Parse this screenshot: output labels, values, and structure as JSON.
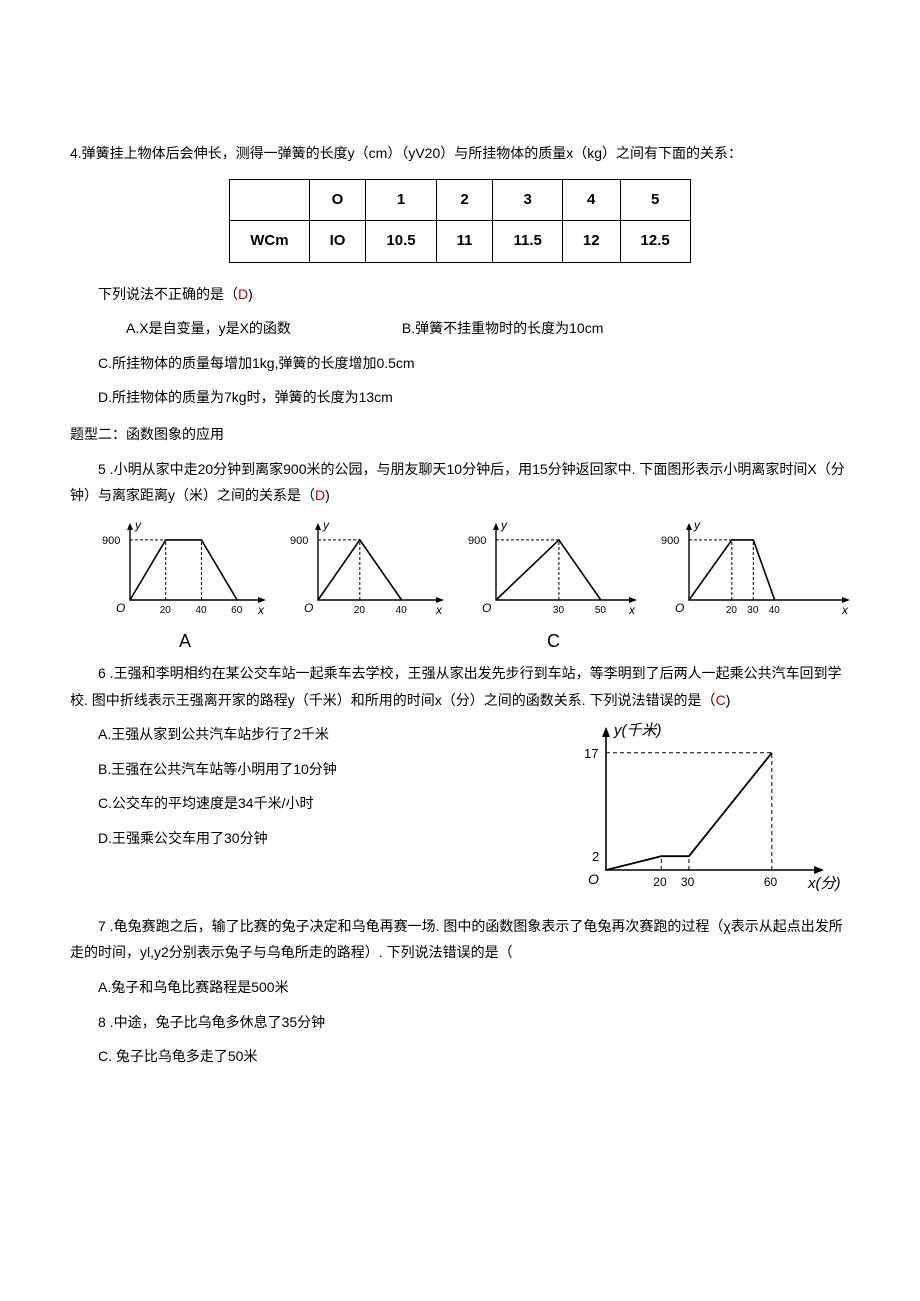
{
  "q4": {
    "prompt": "4.弹簧挂上物体后会伸长，测得一弹簧的长度y（cm）（yV20）与所挂物体的质量x（kg）之间有下面的关系：",
    "table": {
      "header": [
        "",
        "O",
        "1",
        "2",
        "3",
        "4",
        "5"
      ],
      "row": [
        "WCm",
        "IO",
        "10.5",
        "11",
        "11.5",
        "12",
        "12.5"
      ]
    },
    "stem": "下列说法不正确的是（",
    "ans": "D",
    "stem_close": ")",
    "optA": "A.X是自变量，y是X的函数",
    "optB": "B.弹簧不挂重物时的长度为10cm",
    "optC": "C.所挂物体的质量每增加1kg,弹簧的长度增加0.5cm",
    "optD": "D.所挂物体的质量为7kg时，弹簧的长度为13cm"
  },
  "section2": "题型二：函数图象的应用",
  "q5": {
    "prompt": "5 .小明从家中走20分钟到离家900米的公园，与朋友聊天10分钟后，用15分钟返回家中. 下面图形表示小明离家时间X（分钟）与离家距离y（米）之间的关系是（",
    "ans": "D",
    "close": ")",
    "labelA": "A",
    "labelC": "C",
    "charts": {
      "A": {
        "y_label": "y",
        "x_label": "x",
        "y_peak": "900",
        "x_ticks": [
          "20",
          "40",
          "60"
        ],
        "origin": "O",
        "points": [
          [
            0,
            0
          ],
          [
            20,
            55
          ],
          [
            40,
            55
          ],
          [
            60,
            0
          ]
        ],
        "dashx": [
          20,
          40
        ],
        "xmax": 70,
        "ymax": 65,
        "color": "#000"
      },
      "B": {
        "y_label": "y",
        "x_label": "x",
        "y_peak": "900",
        "x_ticks": [
          "20",
          "40"
        ],
        "origin": "O",
        "points": [
          [
            0,
            0
          ],
          [
            20,
            55
          ],
          [
            40,
            0
          ]
        ],
        "dashx": [
          20
        ],
        "xmax": 55,
        "ymax": 65,
        "color": "#000"
      },
      "C": {
        "y_label": "y",
        "x_label": "x",
        "y_peak": "900",
        "x_ticks": [
          "30",
          "50"
        ],
        "origin": "O",
        "points": [
          [
            0,
            0
          ],
          [
            30,
            55
          ],
          [
            50,
            0
          ]
        ],
        "dashx": [
          30
        ],
        "xmax": 62,
        "ymax": 65,
        "color": "#000"
      },
      "D": {
        "y_label": "y",
        "x_label": "x",
        "y_peak": "900",
        "x_ticks": [
          "20",
          "30",
          "40"
        ],
        "origin": "O",
        "points": [
          [
            0,
            0
          ],
          [
            20,
            55
          ],
          [
            30,
            55
          ],
          [
            40,
            0
          ]
        ],
        "dashx": [
          20,
          30
        ],
        "xmax": 70,
        "ymax": 65,
        "color": "#000"
      }
    }
  },
  "q6": {
    "prompt": "6 .王强和李明相约在某公交车站一起乘车去学校，王强从家出发先步行到车站，等李明到了后两人一起乘公共汽车回到学校. 图中折线表示王强离开家的路程y（千米）和所用的时间x（分）之间的函数关系. 下列说法错误的是（",
    "ans": "C",
    "close": ")",
    "optA": "A.王强从家到公共汽车站步行了2千米",
    "optB": "B.王强在公共汽车站等小明用了10分钟",
    "optC": "C.公交车的平均速度是34千米/小时",
    "optD": "D.王强乘公交车用了30分钟",
    "chart": {
      "y_label": "y(千米)",
      "x_label": "x(分)",
      "origin": "O",
      "y_ticks": [
        "2",
        "17"
      ],
      "x_ticks": [
        "20",
        "30",
        "60"
      ],
      "points": [
        [
          0,
          0
        ],
        [
          20,
          10
        ],
        [
          30,
          10
        ],
        [
          60,
          85
        ]
      ],
      "dash_to_y": [
        [
          60,
          85
        ]
      ],
      "dash_x": [
        20,
        30,
        60
      ],
      "xmax": 72,
      "ymax": 95,
      "italic": true,
      "color": "#000"
    }
  },
  "q7": {
    "prompt": "7 .龟兔赛跑之后，输了比赛的兔子决定和乌龟再赛一场. 图中的函数图象表示了龟兔再次赛跑的过程（χ表示从起点出发所走的时间，yl,y2分别表示兔子与乌龟所走的路程）. 下列说法错误的是（",
    "optA": "A.兔子和乌龟比赛路程是500米",
    "opt8": "8 .中途，兔子比乌龟多休息了35分钟",
    "optC": "C.      兔子比乌龟多走了50米"
  }
}
